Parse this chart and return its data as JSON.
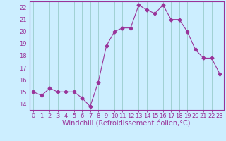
{
  "x": [
    0,
    1,
    2,
    3,
    4,
    5,
    6,
    7,
    8,
    9,
    10,
    11,
    12,
    13,
    14,
    15,
    16,
    17,
    18,
    19,
    20,
    21,
    22,
    23
  ],
  "y": [
    15.0,
    14.7,
    15.3,
    15.0,
    15.0,
    15.0,
    14.5,
    13.8,
    15.8,
    18.8,
    20.0,
    20.3,
    20.3,
    22.2,
    21.8,
    21.5,
    22.2,
    21.0,
    21.0,
    20.0,
    18.5,
    17.8,
    17.8,
    16.5
  ],
  "line_color": "#993399",
  "marker": "D",
  "marker_size": 2.5,
  "bg_color": "#cceeff",
  "grid_color": "#99cccc",
  "xlabel": "Windchill (Refroidissement éolien,°C)",
  "xlim": [
    -0.5,
    23.5
  ],
  "ylim": [
    13.5,
    22.5
  ],
  "yticks": [
    14,
    15,
    16,
    17,
    18,
    19,
    20,
    21,
    22
  ],
  "xticks": [
    0,
    1,
    2,
    3,
    4,
    5,
    6,
    7,
    8,
    9,
    10,
    11,
    12,
    13,
    14,
    15,
    16,
    17,
    18,
    19,
    20,
    21,
    22,
    23
  ],
  "tick_label_fontsize": 6,
  "xlabel_fontsize": 7,
  "axis_color": "#993399",
  "spine_color": "#993399"
}
